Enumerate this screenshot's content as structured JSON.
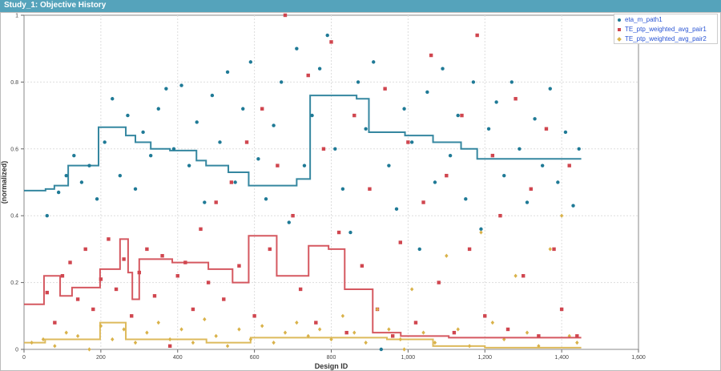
{
  "window": {
    "title": "Study_1: Objective History"
  },
  "chart_data": {
    "type": "scatter",
    "title": "",
    "xlabel": "Design ID",
    "ylabel": "(normalized)",
    "xlim": [
      0,
      1600
    ],
    "ylim": [
      0,
      1
    ],
    "xticks": [
      "0",
      "200",
      "400",
      "600",
      "800",
      "1,000",
      "1,200",
      "1,400",
      "1,600"
    ],
    "xtick_values": [
      0,
      200,
      400,
      600,
      800,
      1000,
      1200,
      1400,
      1600
    ],
    "yticks": [
      "0",
      "0.2",
      "0.4",
      "0.6",
      "0.8",
      "1"
    ],
    "ytick_values": [
      0,
      0.2,
      0.4,
      0.6,
      0.8,
      1
    ],
    "grid": true,
    "legend_position": "top-right",
    "series": [
      {
        "name": "eta_m_path1",
        "color": "#1f7a96",
        "marker": "circle",
        "points": [
          [
            60,
            0.4
          ],
          [
            90,
            0.47
          ],
          [
            110,
            0.52
          ],
          [
            130,
            0.58
          ],
          [
            150,
            0.5
          ],
          [
            170,
            0.55
          ],
          [
            190,
            0.45
          ],
          [
            210,
            0.62
          ],
          [
            230,
            0.75
          ],
          [
            250,
            0.52
          ],
          [
            270,
            0.7
          ],
          [
            290,
            0.48
          ],
          [
            310,
            0.65
          ],
          [
            330,
            0.58
          ],
          [
            350,
            0.72
          ],
          [
            370,
            0.78
          ],
          [
            390,
            0.6
          ],
          [
            410,
            0.79
          ],
          [
            430,
            0.55
          ],
          [
            450,
            0.68
          ],
          [
            470,
            0.44
          ],
          [
            490,
            0.76
          ],
          [
            510,
            0.62
          ],
          [
            530,
            0.83
          ],
          [
            550,
            0.5
          ],
          [
            570,
            0.72
          ],
          [
            590,
            0.86
          ],
          [
            610,
            0.57
          ],
          [
            630,
            0.45
          ],
          [
            650,
            0.67
          ],
          [
            670,
            0.8
          ],
          [
            690,
            0.38
          ],
          [
            710,
            0.9
          ],
          [
            730,
            0.55
          ],
          [
            750,
            0.7
          ],
          [
            770,
            0.84
          ],
          [
            790,
            0.94
          ],
          [
            810,
            0.6
          ],
          [
            830,
            0.48
          ],
          [
            850,
            0.35
          ],
          [
            870,
            0.8
          ],
          [
            890,
            0.66
          ],
          [
            910,
            0.86
          ],
          [
            930,
            0
          ],
          [
            950,
            0.55
          ],
          [
            970,
            0.42
          ],
          [
            990,
            0.72
          ],
          [
            1010,
            0.62
          ],
          [
            1030,
            0.3
          ],
          [
            1050,
            0.77
          ],
          [
            1070,
            0.5
          ],
          [
            1090,
            0.84
          ],
          [
            1110,
            0.58
          ],
          [
            1130,
            0.7
          ],
          [
            1150,
            0.45
          ],
          [
            1170,
            0.8
          ],
          [
            1190,
            0.36
          ],
          [
            1210,
            0.66
          ],
          [
            1230,
            0.74
          ],
          [
            1250,
            0.52
          ],
          [
            1270,
            0.8
          ],
          [
            1290,
            0.6
          ],
          [
            1310,
            0.44
          ],
          [
            1330,
            0.69
          ],
          [
            1350,
            0.55
          ],
          [
            1370,
            0.78
          ],
          [
            1390,
            0.5
          ],
          [
            1410,
            0.65
          ],
          [
            1430,
            0.43
          ],
          [
            1445,
            0.6
          ]
        ],
        "best_so_far": [
          [
            0,
            0.475
          ],
          [
            56,
            0.48
          ],
          [
            79,
            0.49
          ],
          [
            115,
            0.55
          ],
          [
            194,
            0.665
          ],
          [
            265,
            0.64
          ],
          [
            290,
            0.62
          ],
          [
            330,
            0.6
          ],
          [
            380,
            0.595
          ],
          [
            449,
            0.565
          ],
          [
            474,
            0.55
          ],
          [
            532,
            0.53
          ],
          [
            585,
            0.49
          ],
          [
            710,
            0.51
          ],
          [
            745,
            0.76
          ],
          [
            866,
            0.75
          ],
          [
            898,
            0.65
          ],
          [
            992,
            0.64
          ],
          [
            1065,
            0.62
          ],
          [
            1138,
            0.6
          ],
          [
            1180,
            0.57
          ],
          [
            1451,
            0.57
          ]
        ]
      },
      {
        "name": "TE_ptp_weighted_avg_pair1",
        "color": "#d0464f",
        "marker": "square",
        "points": [
          [
            60,
            0.17
          ],
          [
            80,
            0.08
          ],
          [
            100,
            0.22
          ],
          [
            120,
            0.26
          ],
          [
            140,
            0.15
          ],
          [
            160,
            0.3
          ],
          [
            180,
            0.12
          ],
          [
            200,
            0.21
          ],
          [
            220,
            0.33
          ],
          [
            240,
            0.18
          ],
          [
            260,
            0.27
          ],
          [
            280,
            0.1
          ],
          [
            300,
            0.23
          ],
          [
            320,
            0.3
          ],
          [
            340,
            0.16
          ],
          [
            360,
            0.28
          ],
          [
            380,
            0.01
          ],
          [
            400,
            0.22
          ],
          [
            420,
            0.26
          ],
          [
            440,
            0.12
          ],
          [
            460,
            0.36
          ],
          [
            480,
            0.2
          ],
          [
            500,
            0.44
          ],
          [
            520,
            0.15
          ],
          [
            540,
            0.5
          ],
          [
            560,
            0.25
          ],
          [
            580,
            0.62
          ],
          [
            600,
            0.1
          ],
          [
            620,
            0.72
          ],
          [
            640,
            0.3
          ],
          [
            660,
            0.55
          ],
          [
            680,
            1.0
          ],
          [
            700,
            0.4
          ],
          [
            720,
            0.18
          ],
          [
            740,
            0.82
          ],
          [
            760,
            0.08
          ],
          [
            780,
            0.6
          ],
          [
            800,
            0.92
          ],
          [
            820,
            0.35
          ],
          [
            840,
            0.05
          ],
          [
            860,
            0.7
          ],
          [
            880,
            0.25
          ],
          [
            900,
            0.48
          ],
          [
            920,
            0.12
          ],
          [
            940,
            0.78
          ],
          [
            960,
            0.04
          ],
          [
            980,
            0.32
          ],
          [
            1000,
            0.62
          ],
          [
            1020,
            0.08
          ],
          [
            1040,
            0.44
          ],
          [
            1060,
            0.88
          ],
          [
            1080,
            0.2
          ],
          [
            1100,
            0.52
          ],
          [
            1120,
            0.05
          ],
          [
            1140,
            0.7
          ],
          [
            1160,
            0.3
          ],
          [
            1180,
            0.94
          ],
          [
            1200,
            0.1
          ],
          [
            1220,
            0.58
          ],
          [
            1240,
            0.4
          ],
          [
            1260,
            0.06
          ],
          [
            1280,
            0.75
          ],
          [
            1300,
            0.22
          ],
          [
            1320,
            0.48
          ],
          [
            1340,
            0.04
          ],
          [
            1360,
            0.66
          ],
          [
            1380,
            0.3
          ],
          [
            1400,
            0.12
          ],
          [
            1420,
            0.55
          ],
          [
            1440,
            0.04
          ]
        ],
        "best_so_far": [
          [
            0,
            0.135
          ],
          [
            52,
            0.22
          ],
          [
            94,
            0.16
          ],
          [
            125,
            0.185
          ],
          [
            198,
            0.24
          ],
          [
            250,
            0.33
          ],
          [
            271,
            0.23
          ],
          [
            282,
            0.15
          ],
          [
            300,
            0.27
          ],
          [
            386,
            0.26
          ],
          [
            480,
            0.24
          ],
          [
            543,
            0.2
          ],
          [
            585,
            0.34
          ],
          [
            658,
            0.22
          ],
          [
            741,
            0.31
          ],
          [
            793,
            0.3
          ],
          [
            835,
            0.18
          ],
          [
            908,
            0.05
          ],
          [
            981,
            0.04
          ],
          [
            1106,
            0.035
          ],
          [
            1451,
            0.035
          ]
        ]
      },
      {
        "name": "TE_ptp_weighted_avg_pair2",
        "color": "#d9b24a",
        "marker": "diamond",
        "points": [
          [
            20,
            0.02
          ],
          [
            50,
            0.03
          ],
          [
            80,
            0.01
          ],
          [
            110,
            0.05
          ],
          [
            140,
            0.04
          ],
          [
            170,
            0.0
          ],
          [
            200,
            0.07
          ],
          [
            230,
            0.03
          ],
          [
            260,
            0.06
          ],
          [
            290,
            0.02
          ],
          [
            320,
            0.05
          ],
          [
            350,
            0.08
          ],
          [
            380,
            0.03
          ],
          [
            410,
            0.06
          ],
          [
            440,
            0.02
          ],
          [
            470,
            0.09
          ],
          [
            500,
            0.04
          ],
          [
            530,
            0.01
          ],
          [
            560,
            0.06
          ],
          [
            590,
            0.03
          ],
          [
            620,
            0.07
          ],
          [
            650,
            0.02
          ],
          [
            680,
            0.05
          ],
          [
            710,
            0.08
          ],
          [
            740,
            0.04
          ],
          [
            770,
            0.06
          ],
          [
            800,
            0.03
          ],
          [
            830,
            0.1
          ],
          [
            860,
            0.05
          ],
          [
            890,
            0.02
          ],
          [
            920,
            0.12
          ],
          [
            950,
            0.06
          ],
          [
            980,
            0.03
          ],
          [
            990,
            0.0
          ],
          [
            1010,
            0.18
          ],
          [
            1040,
            0.05
          ],
          [
            1070,
            0.02
          ],
          [
            1100,
            0.28
          ],
          [
            1130,
            0.06
          ],
          [
            1160,
            0.01
          ],
          [
            1190,
            0.35
          ],
          [
            1220,
            0.08
          ],
          [
            1250,
            0.03
          ],
          [
            1280,
            0.22
          ],
          [
            1310,
            0.05
          ],
          [
            1340,
            0.01
          ],
          [
            1370,
            0.3
          ],
          [
            1400,
            0.4
          ],
          [
            1420,
            0.04
          ],
          [
            1440,
            0.02
          ]
        ],
        "best_so_far": [
          [
            0,
            0.02
          ],
          [
            55,
            0.03
          ],
          [
            198,
            0.08
          ],
          [
            265,
            0.03
          ],
          [
            475,
            0.02
          ],
          [
            590,
            0.035
          ],
          [
            945,
            0.03
          ],
          [
            1065,
            0.01
          ],
          [
            1200,
            0.005
          ],
          [
            1451,
            0.005
          ]
        ]
      }
    ]
  }
}
